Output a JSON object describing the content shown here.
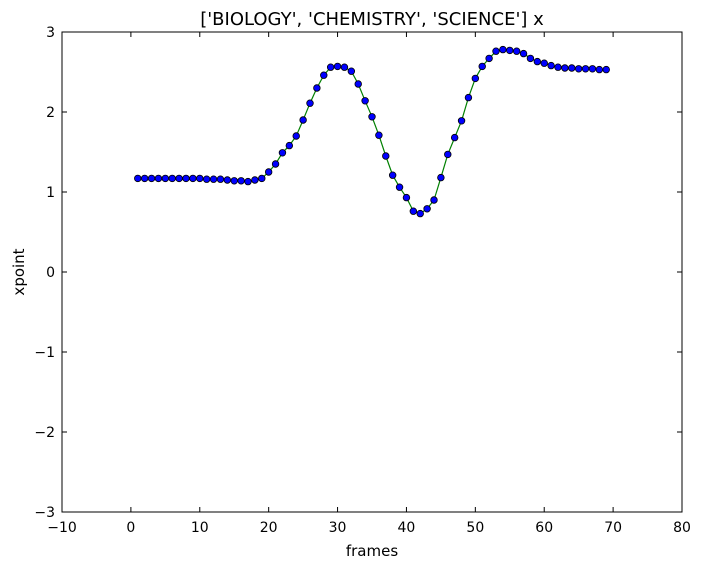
{
  "chart_data": {
    "type": "scatter",
    "title": "['BIOLOGY', 'CHEMISTRY', 'SCIENCE'] x",
    "xlabel": "frames",
    "ylabel": "xpoint",
    "xlim": [
      -10,
      80
    ],
    "ylim": [
      -3,
      3
    ],
    "xticks": [
      -10,
      0,
      10,
      20,
      30,
      40,
      50,
      60,
      70,
      80
    ],
    "yticks": [
      -3,
      -2,
      -1,
      0,
      1,
      2,
      3
    ],
    "xtick_labels": [
      "−10",
      "0",
      "10",
      "20",
      "30",
      "40",
      "50",
      "60",
      "70",
      "80"
    ],
    "ytick_labels": [
      "−3",
      "−2",
      "−1",
      "0",
      "1",
      "2",
      "3"
    ],
    "grid": false,
    "legend": "none",
    "colors": {
      "points": "#0000ff",
      "line": "#008000"
    },
    "series": [
      {
        "x": [
          1,
          2,
          3,
          4,
          5,
          6,
          7,
          8,
          9,
          10,
          11,
          12,
          13,
          14,
          15,
          16,
          17,
          18,
          19,
          20,
          21,
          22,
          23,
          24,
          25,
          26,
          27,
          28,
          29,
          30,
          31,
          32,
          33,
          34,
          35,
          36,
          37,
          38,
          39,
          40,
          41,
          42,
          43,
          44,
          45,
          46,
          47,
          48,
          49,
          50,
          51,
          52,
          53,
          54,
          55,
          56,
          57,
          58,
          59,
          60,
          61,
          62,
          63,
          64,
          65,
          66,
          67,
          68,
          69
        ],
        "y": [
          1.17,
          1.17,
          1.17,
          1.17,
          1.17,
          1.17,
          1.17,
          1.17,
          1.17,
          1.17,
          1.16,
          1.16,
          1.16,
          1.15,
          1.14,
          1.14,
          1.13,
          1.15,
          1.17,
          1.25,
          1.35,
          1.49,
          1.58,
          1.7,
          1.9,
          2.11,
          2.3,
          2.46,
          2.56,
          2.57,
          2.56,
          2.51,
          2.35,
          2.14,
          1.94,
          1.71,
          1.45,
          1.21,
          1.06,
          0.93,
          0.76,
          0.73,
          0.79,
          0.9,
          1.18,
          1.47,
          1.68,
          1.89,
          2.18,
          2.42,
          2.57,
          2.67,
          2.76,
          2.78,
          2.77,
          2.76,
          2.73,
          2.67,
          2.63,
          2.61,
          2.58,
          2.56,
          2.55,
          2.55,
          2.54,
          2.54,
          2.54,
          2.53,
          2.53
        ]
      }
    ]
  }
}
